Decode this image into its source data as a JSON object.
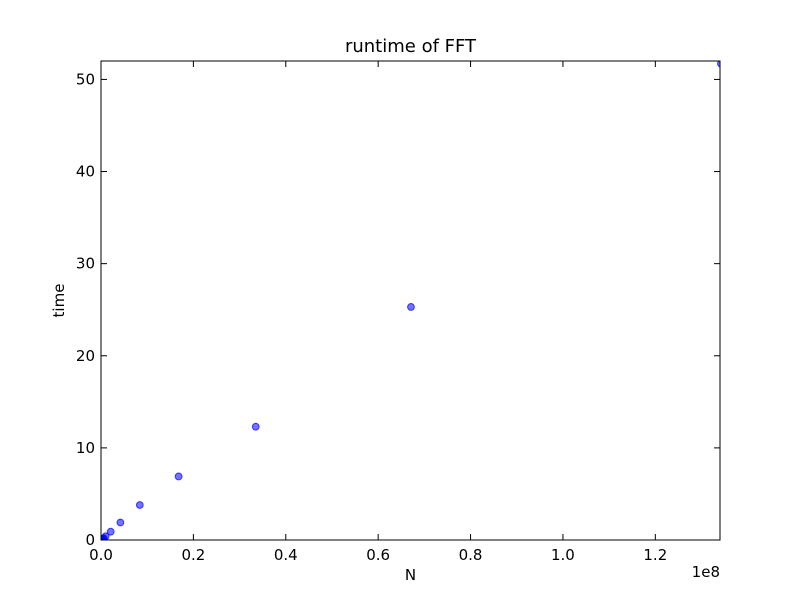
{
  "chart_data": {
    "type": "scatter",
    "title": "runtime of FFT",
    "xlabel": "N",
    "ylabel": "time",
    "x_offset_label": "1e8",
    "xlim": [
      0,
      1.34
    ],
    "ylim": [
      0,
      52
    ],
    "x_ticks": [
      0.0,
      0.2,
      0.4,
      0.6,
      0.8,
      1.0,
      1.2
    ],
    "x_tick_labels": [
      "0.0",
      "0.2",
      "0.4",
      "0.6",
      "0.8",
      "1.0",
      "1.2"
    ],
    "y_ticks": [
      0,
      10,
      20,
      30,
      40,
      50
    ],
    "y_tick_labels": [
      "0",
      "10",
      "20",
      "30",
      "40",
      "50"
    ],
    "grid": false,
    "marker_color": "#0000ff",
    "points": [
      {
        "x": 0.001,
        "y": 0.05
      },
      {
        "x": 0.002,
        "y": 0.08
      },
      {
        "x": 0.004,
        "y": 0.12
      },
      {
        "x": 0.006,
        "y": 0.2
      },
      {
        "x": 0.01,
        "y": 0.4
      },
      {
        "x": 0.021,
        "y": 0.9
      },
      {
        "x": 0.042,
        "y": 1.9
      },
      {
        "x": 0.084,
        "y": 3.8
      },
      {
        "x": 0.168,
        "y": 6.9
      },
      {
        "x": 0.335,
        "y": 12.3
      },
      {
        "x": 0.671,
        "y": 25.3
      },
      {
        "x": 1.342,
        "y": 51.7
      }
    ]
  }
}
